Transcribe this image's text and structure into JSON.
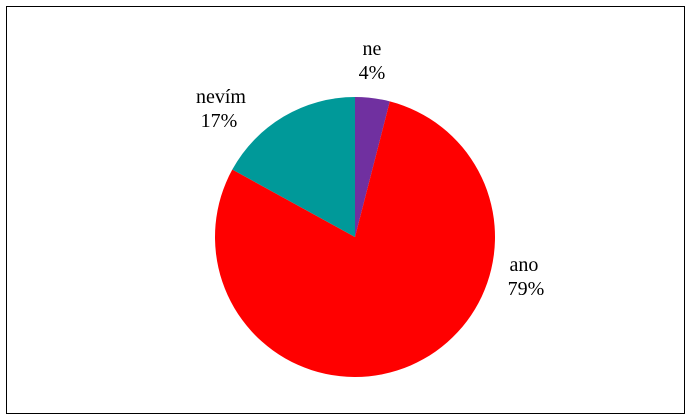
{
  "chart_data": {
    "type": "pie",
    "title": "",
    "slices": [
      {
        "label": "ne",
        "value": 4,
        "value_label": "4%",
        "color": "#7030A0"
      },
      {
        "label": "ano",
        "value": 79,
        "value_label": "79%",
        "color": "#FF0000"
      },
      {
        "label": "nevím",
        "value": 17,
        "value_label": "17%",
        "color": "#009999"
      }
    ],
    "start_angle_deg": 0,
    "direction": "clockwise",
    "legend": "none",
    "data_labels": "outside, category name above percentage"
  }
}
